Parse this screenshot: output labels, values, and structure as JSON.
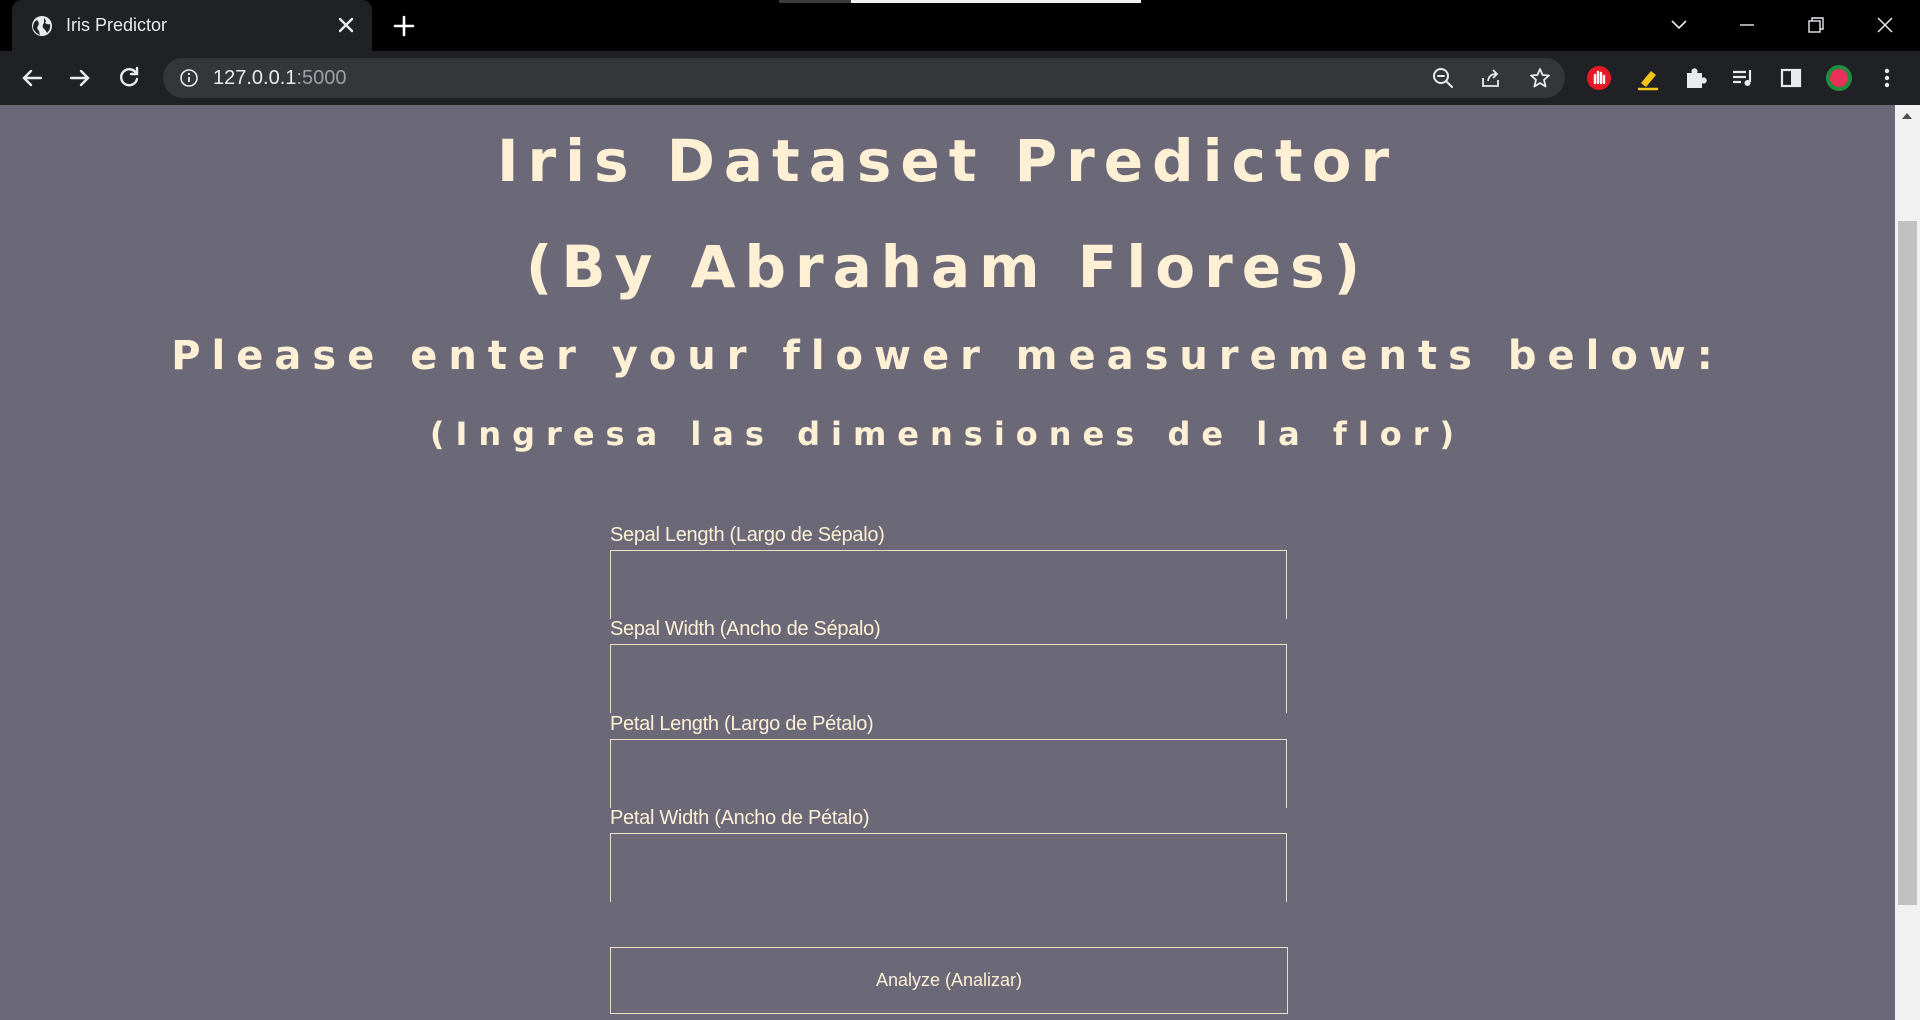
{
  "browser": {
    "tab_title": "Iris Predictor",
    "url_host": "127.0.0.1",
    "url_port": ":5000",
    "icons": {
      "favicon": "globe-icon",
      "tab_close": "close-icon",
      "new_tab": "plus-icon",
      "tab_search": "chevron-down-icon",
      "minimize": "minimize-icon",
      "restore": "restore-icon",
      "close_window": "close-icon",
      "back": "arrow-left-icon",
      "forward": "arrow-right-icon",
      "reload": "reload-icon",
      "site_info": "info-icon",
      "zoom": "zoom-out-icon",
      "share": "share-icon",
      "bookmark": "star-icon",
      "ext_block": "hand-stop-icon",
      "ext_highlighter": "highlighter-icon",
      "extensions": "puzzle-icon",
      "media": "media-queue-icon",
      "side_panel": "side-panel-icon",
      "profile": "avatar",
      "menu": "kebab-menu-icon"
    }
  },
  "page": {
    "title": "Iris Dataset Predictor",
    "author": "(By Abraham Flores)",
    "instruction": "Please enter your flower measurements below:",
    "instruction_es": "(Ingresa las dimensiones de la flor)",
    "fields": [
      {
        "label": "Sepal Length (Largo de Sépalo)",
        "value": "",
        "placeholder": ""
      },
      {
        "label": "Sepal Width (Ancho de Sépalo)",
        "value": "",
        "placeholder": ""
      },
      {
        "label": "Petal Length (Largo de Pétalo)",
        "value": "",
        "placeholder": ""
      },
      {
        "label": "Petal Width (Ancho de Pétalo)",
        "value": "",
        "placeholder": ""
      }
    ],
    "submit_label": "Analyze (Analizar)"
  },
  "colors": {
    "page_background": "#6b6878",
    "text": "#fdf0d5",
    "border": "#e9dfc6",
    "chrome_dark": "#202124"
  }
}
